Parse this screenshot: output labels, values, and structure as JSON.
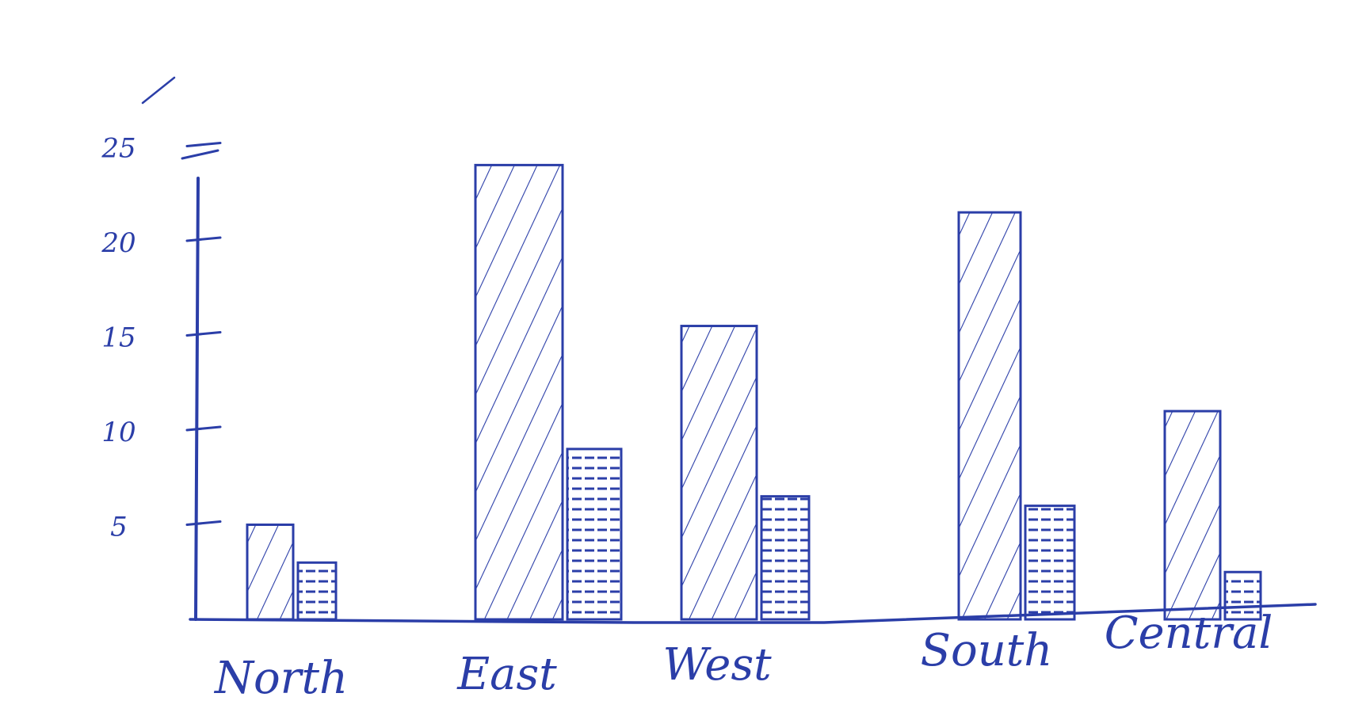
{
  "chart_data": {
    "type": "bar",
    "title": "",
    "xlabel": "",
    "ylabel": "",
    "categories": [
      "North",
      "East",
      "West",
      "South",
      "Central"
    ],
    "series": [
      {
        "values": [
          5,
          24,
          15.5,
          21.5,
          11
        ],
        "pattern": "diagonal-hatch"
      },
      {
        "values": [
          3,
          9,
          6.5,
          6,
          2.5
        ],
        "pattern": "horizontal-hatch"
      }
    ],
    "ylim": [
      0,
      25
    ],
    "yticks": [
      5,
      10,
      15,
      20,
      25
    ],
    "ytick_labels": [
      "5",
      "10",
      "15",
      "20",
      "25"
    ],
    "grid": false,
    "legend": "none",
    "colors": {
      "ink": "#2b3ea8"
    }
  }
}
